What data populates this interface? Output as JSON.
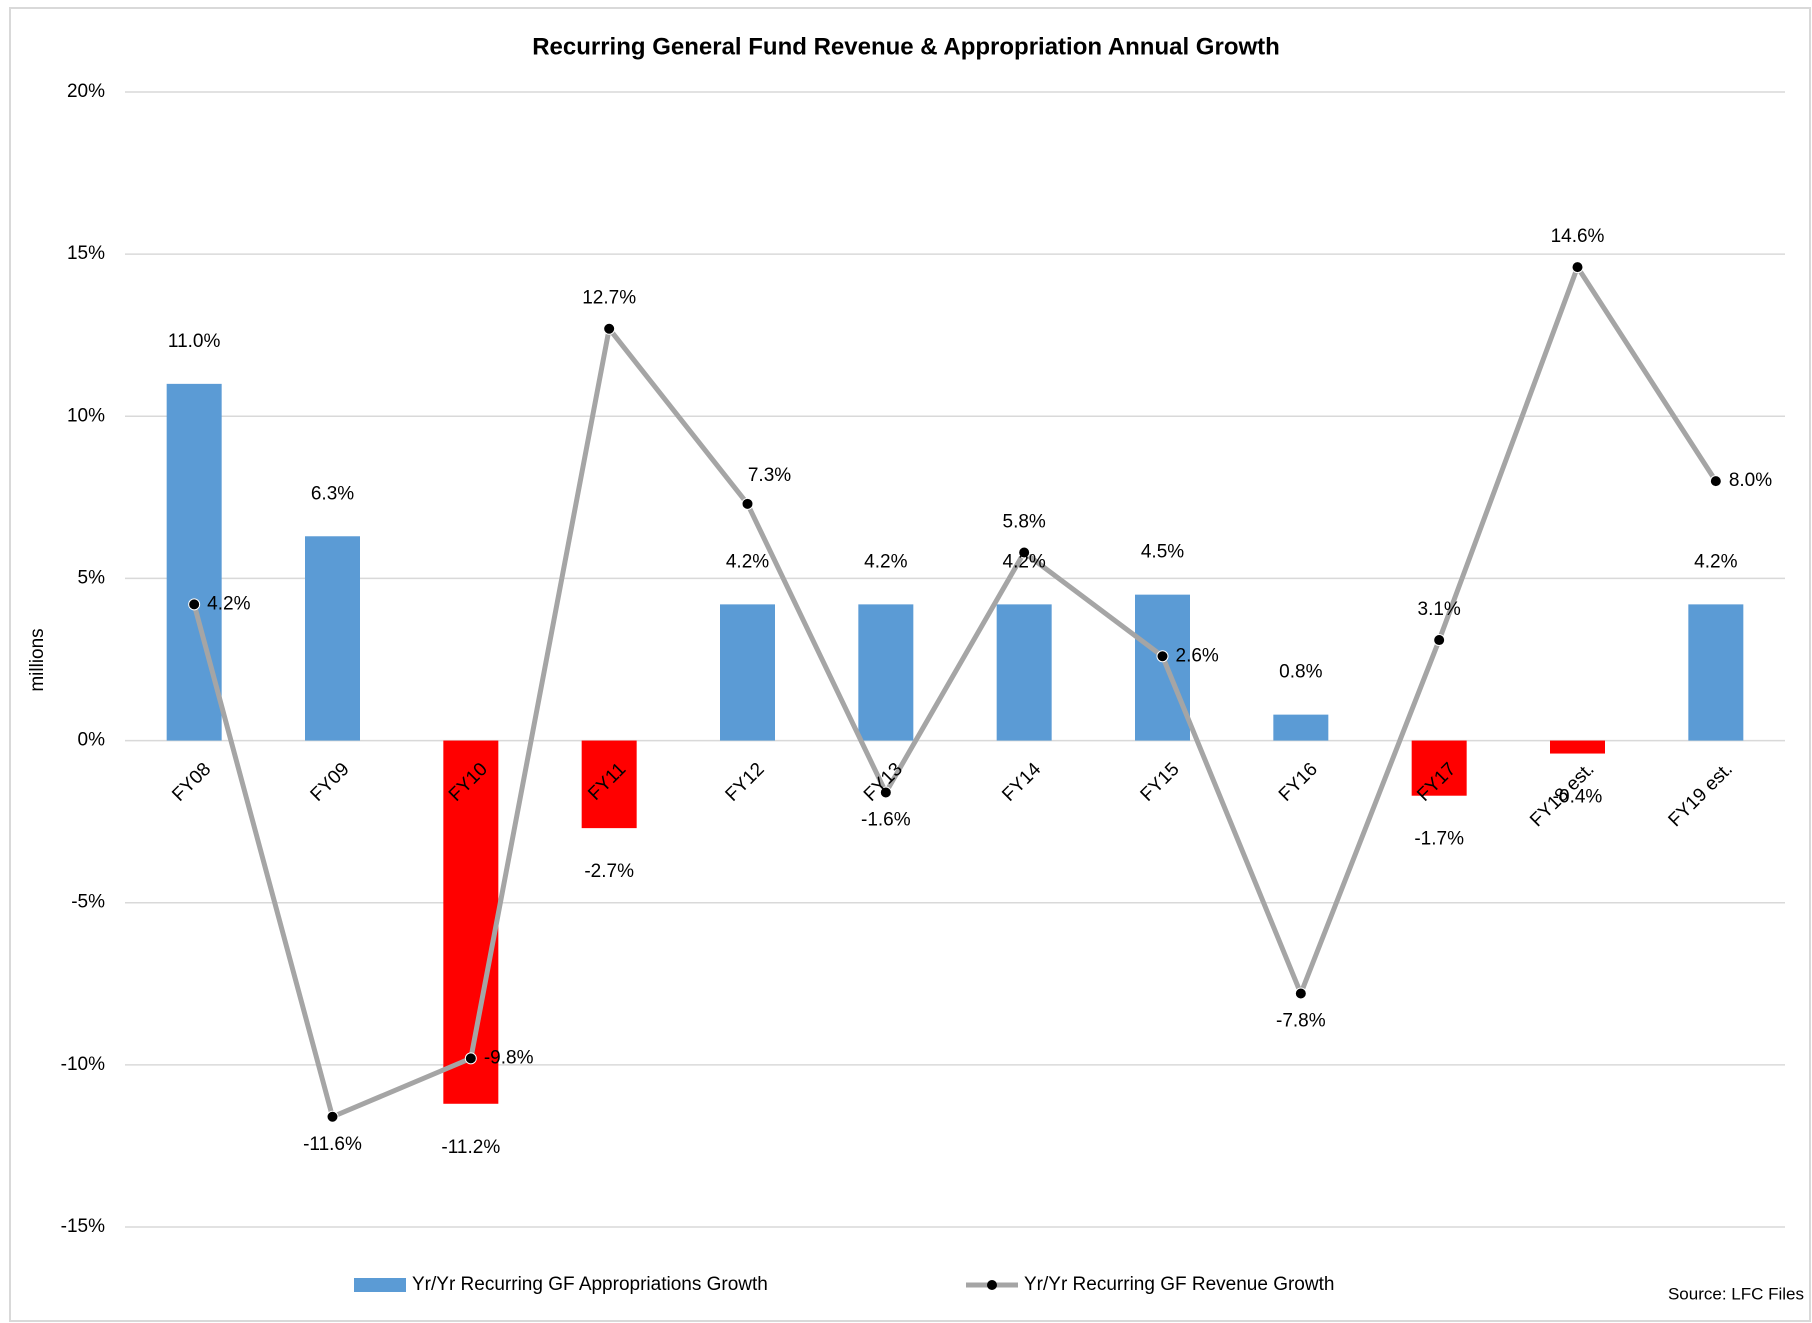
{
  "chart_data": {
    "type": "bar-line",
    "title": "Recurring General Fund Revenue & Appropriation Annual Growth",
    "y_label": "millions",
    "source": "Source: LFC Files",
    "categories": [
      "FY08",
      "FY09",
      "FY10",
      "FY11",
      "FY12",
      "FY13",
      "FY14",
      "FY15",
      "FY16",
      "FY17",
      "FY18 est.",
      "FY19 est."
    ],
    "series": [
      {
        "name": "Yr/Yr Recurring GF Appropriations Growth",
        "type": "bar",
        "color": "#5b9bd5",
        "negative_color": "#ff0000",
        "values": [
          11.0,
          6.3,
          -11.2,
          -2.7,
          4.2,
          4.2,
          4.2,
          4.5,
          0.8,
          -1.7,
          -0.4,
          4.2
        ],
        "value_labels": [
          "11.0%",
          "6.3%",
          "-11.2%",
          "-2.7%",
          "4.2%",
          "4.2%",
          "4.2%",
          "4.5%",
          "0.8%",
          "-1.7%",
          "-0.4%",
          "4.2%"
        ]
      },
      {
        "name": "Yr/Yr Recurring GF Revenue Growth",
        "type": "line",
        "color": "#a5a5a5",
        "marker_color": "#000000",
        "values": [
          4.2,
          -11.6,
          -9.8,
          12.7,
          7.3,
          -1.6,
          5.8,
          2.6,
          -7.8,
          3.1,
          14.6,
          8.0
        ],
        "value_labels": [
          "4.2%",
          "-11.6%",
          "-9.8%",
          "12.7%",
          "7.3%",
          "-1.6%",
          "5.8%",
          "2.6%",
          "-7.8%",
          "3.1%",
          "14.6%",
          "8.0%"
        ]
      }
    ],
    "ylim": [
      -15,
      20
    ],
    "yticks": [
      {
        "value": -15,
        "label": "-15%"
      },
      {
        "value": -10,
        "label": "-10%"
      },
      {
        "value": -5,
        "label": "-5%"
      },
      {
        "value": 0,
        "label": "0%"
      },
      {
        "value": 5,
        "label": "5%"
      },
      {
        "value": 10,
        "label": "10%"
      },
      {
        "value": 15,
        "label": "15%"
      },
      {
        "value": 20,
        "label": "20%"
      }
    ],
    "grid": true,
    "legend": "bottom"
  }
}
